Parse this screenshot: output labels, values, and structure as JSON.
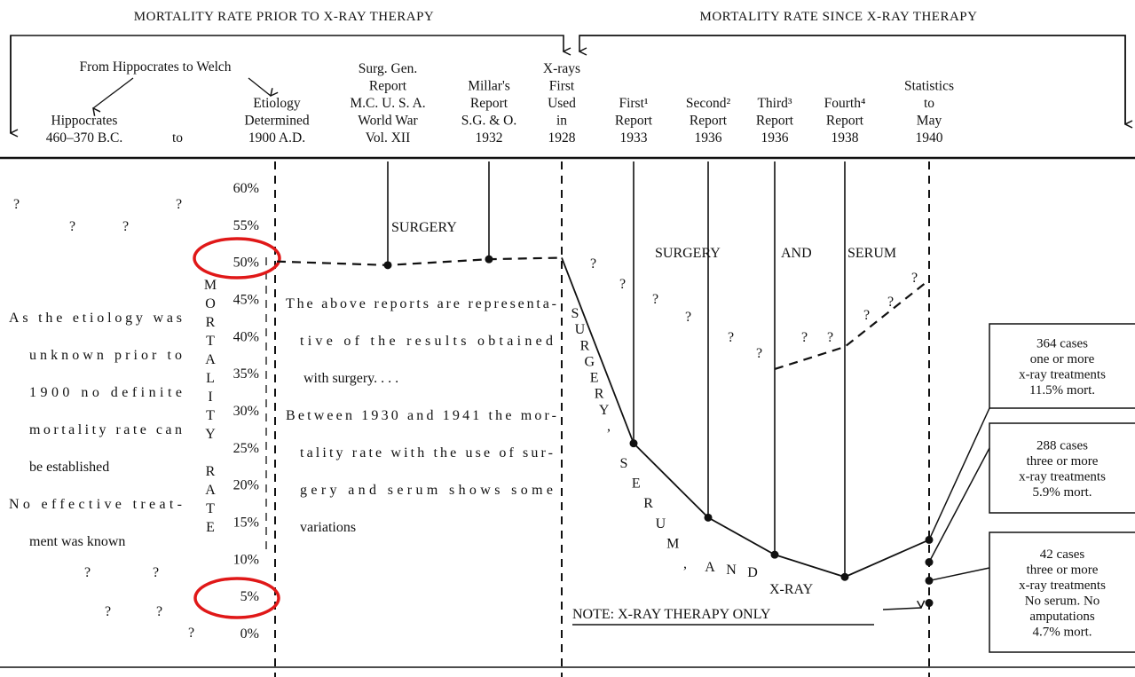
{
  "chart_data": {
    "type": "line",
    "title_left": "MORTALITY RATE PRIOR TO X-RAY THERAPY",
    "title_right": "MORTALITY RATE SINCE X-RAY THERAPY",
    "header_note": "From Hippocrates to Welch",
    "categories": [
      [
        "Hippocrates",
        "460–370 B.C."
      ],
      [
        "to"
      ],
      [
        "Etiology",
        "Determined",
        "1900 A.D."
      ],
      [
        "Surg. Gen.",
        "Report",
        "M.C. U. S. A.",
        "World War",
        "Vol. XII"
      ],
      [
        "Millar's",
        "Report",
        "S.G. & O.",
        "1932"
      ],
      [
        "X-rays",
        "First",
        "Used",
        "in",
        "1928"
      ],
      [
        "First¹",
        "Report",
        "1933"
      ],
      [
        "Second²",
        "Report",
        "1936"
      ],
      [
        "Third³",
        "Report",
        "1936"
      ],
      [
        "Fourth⁴",
        "Report",
        "1938"
      ],
      [
        "Statistics",
        "to",
        "May",
        "1940"
      ]
    ],
    "y_label": "MORTALITY RATE",
    "ylim": [
      0,
      60
    ],
    "yticks": [
      {
        "value": 0,
        "label": "0%"
      },
      {
        "value": 5,
        "label": "5%"
      },
      {
        "value": 10,
        "label": "10%"
      },
      {
        "value": 15,
        "label": "15%"
      },
      {
        "value": 20,
        "label": "20%"
      },
      {
        "value": 25,
        "label": "25%"
      },
      {
        "value": 30,
        "label": "30%"
      },
      {
        "value": 35,
        "label": "35%"
      },
      {
        "value": 40,
        "label": "40%"
      },
      {
        "value": 45,
        "label": "45%"
      },
      {
        "value": 50,
        "label": "50%"
      },
      {
        "value": 55,
        "label": "55%"
      },
      {
        "value": 60,
        "label": "60%"
      }
    ],
    "series": [
      {
        "color": "#111111",
        "dashed": true,
        "markers": true,
        "values": [
          null,
          null,
          50,
          49.5,
          50.3,
          50.5,
          null,
          null,
          null,
          null,
          null
        ]
      },
      {
        "color": "#111111",
        "dashed": true,
        "markers": false,
        "values": [
          null,
          null,
          null,
          null,
          null,
          50.5,
          null,
          null,
          35.5,
          38.5,
          47.5
        ]
      },
      {
        "color": "#111111",
        "dashed": false,
        "markers": true,
        "values": [
          null,
          null,
          null,
          null,
          null,
          50.5,
          25.5,
          15.5,
          10.5,
          7.5,
          12.5
        ]
      }
    ],
    "extra_points": [
      9.5,
      7,
      4
    ],
    "annotations": {
      "surgery": "SURGERY",
      "surgery_serum": [
        "SURGERY",
        "AND",
        "SERUM"
      ],
      "diagonal": [
        "SURGERY,",
        "SERUM,",
        "AND",
        "X-RAY"
      ],
      "left_text": [
        "As the etiology was",
        "unknown prior to",
        "1900 no definite",
        "mortality rate can",
        "be established",
        "No effective treat-",
        "ment was known"
      ],
      "middle_text": [
        "The above reports are representa-",
        "tive of the results obtained",
        "with surgery. . . .",
        "Between 1930 and 1941 the mor-",
        "tality rate with the use of sur-",
        "gery and serum shows some",
        "variations"
      ],
      "note": "NOTE:  X-RAY THERAPY ONLY",
      "question": "?",
      "boxes": [
        [
          "364 cases",
          "one or more",
          "x-ray treatments",
          "11.5% mort."
        ],
        [
          "288 cases",
          "three or more",
          "x-ray treatments",
          "5.9% mort."
        ],
        [
          "42 cases",
          "three or more",
          "x-ray treatments",
          "No serum.   No",
          "amputations",
          "4.7% mort."
        ]
      ]
    }
  }
}
